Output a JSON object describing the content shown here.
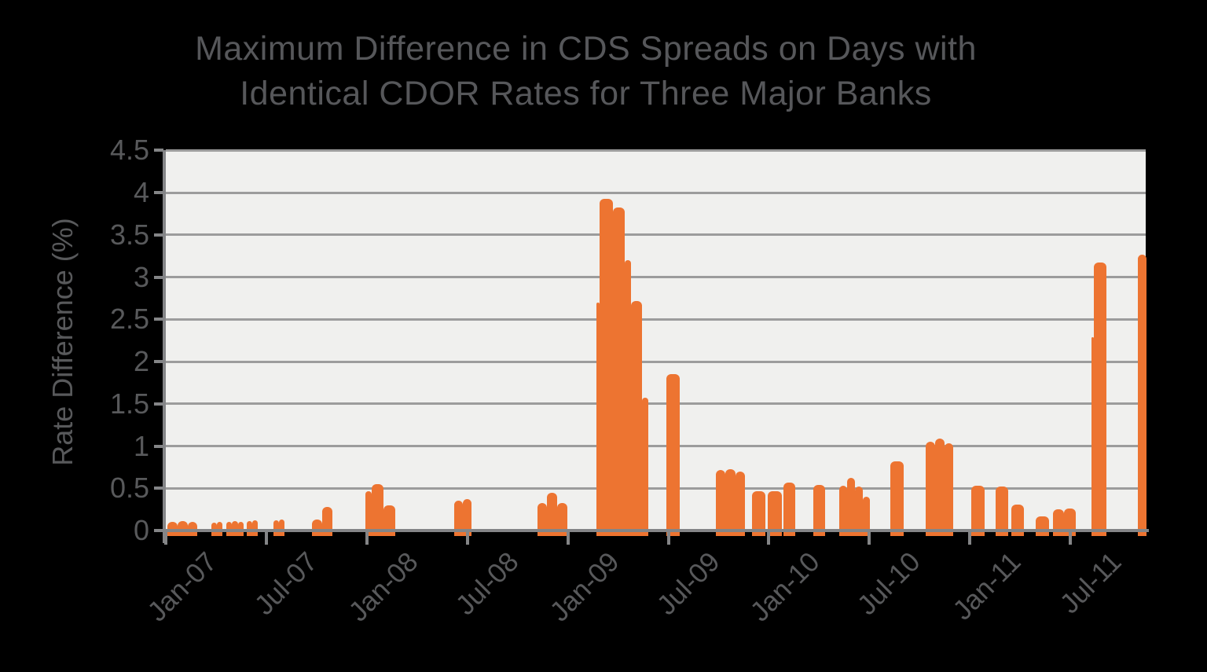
{
  "title": {
    "line1": "Maximum Difference in CDS Spreads on Days with",
    "line2": "Identical CDOR Rates for Three Major Banks"
  },
  "colors": {
    "background": "#000000",
    "bar": "#ED7431",
    "plot_background": "#F0F0EE",
    "gridline": "#9C9C9C",
    "axis": "#848587",
    "text": "#58595B"
  },
  "chart_data": {
    "type": "bar",
    "title": "Maximum Difference in CDS Spreads on Days with Identical CDOR Rates for Three Major Banks",
    "xlabel": "",
    "ylabel": "Rate Difference (%)",
    "ylim": [
      0,
      4.5
    ],
    "ytick_step": 0.5,
    "yticks": [
      "0",
      "0.5",
      "1",
      "1.5",
      "2",
      "2.5",
      "3",
      "3.5",
      "4",
      "4.5"
    ],
    "xticks": [
      "Jan-07",
      "Jul-07",
      "Jan-08",
      "Jul-08",
      "Jan-09",
      "Jul-09",
      "Jan-10",
      "Jul-10",
      "Jan-11",
      "Jul-11"
    ],
    "grid": true,
    "legend": false,
    "x_unit": "months since Jan-2007 (6 months between labeled ticks)",
    "bar_format": [
      "t_months_since_jan_2007",
      "bar_width_px",
      "value_pct"
    ],
    "bars": [
      [
        0.3,
        13,
        0.1
      ],
      [
        0.9,
        13,
        0.11
      ],
      [
        1.5,
        12,
        0.1
      ],
      [
        2.9,
        7,
        0.09
      ],
      [
        3.23,
        7,
        0.1
      ],
      [
        3.79,
        7,
        0.1
      ],
      [
        4.13,
        8,
        0.11
      ],
      [
        4.5,
        7,
        0.1
      ],
      [
        5.0,
        7,
        0.11
      ],
      [
        5.33,
        7,
        0.12
      ],
      [
        6.59,
        7,
        0.12
      ],
      [
        6.92,
        7,
        0.13
      ],
      [
        8.89,
        13,
        0.13
      ],
      [
        9.5,
        13,
        0.28
      ],
      [
        12.07,
        8,
        0.47
      ],
      [
        12.44,
        15,
        0.55
      ],
      [
        13.14,
        15,
        0.3
      ],
      [
        17.35,
        11,
        0.35
      ],
      [
        17.86,
        11,
        0.37
      ],
      [
        22.31,
        12,
        0.33
      ],
      [
        22.87,
        13,
        0.45
      ],
      [
        23.48,
        13,
        0.33
      ],
      [
        25.82,
        4,
        2.7
      ],
      [
        26.01,
        17,
        3.93
      ],
      [
        26.81,
        15,
        3.82
      ],
      [
        27.51,
        8,
        3.2
      ],
      [
        27.88,
        14,
        2.72
      ],
      [
        28.53,
        8,
        1.57
      ],
      [
        29.98,
        17,
        1.85
      ],
      [
        32.93,
        12,
        0.72
      ],
      [
        33.49,
        13,
        0.73
      ],
      [
        34.1,
        12,
        0.7
      ],
      [
        35.08,
        17,
        0.47
      ],
      [
        36.02,
        18,
        0.47
      ],
      [
        36.95,
        15,
        0.57
      ],
      [
        38.73,
        15,
        0.54
      ],
      [
        40.27,
        10,
        0.53
      ],
      [
        40.74,
        10,
        0.62
      ],
      [
        41.21,
        10,
        0.52
      ],
      [
        41.68,
        9,
        0.4
      ],
      [
        43.31,
        17,
        0.82
      ],
      [
        45.42,
        12,
        1.05
      ],
      [
        45.98,
        12,
        1.09
      ],
      [
        46.54,
        11,
        1.03
      ],
      [
        48.13,
        17,
        0.53
      ],
      [
        49.58,
        16,
        0.52
      ],
      [
        50.51,
        16,
        0.31
      ],
      [
        51.96,
        17,
        0.17
      ],
      [
        52.99,
        14,
        0.25
      ],
      [
        53.64,
        15,
        0.26
      ],
      [
        55.28,
        3,
        2.29
      ],
      [
        55.42,
        16,
        3.17
      ],
      [
        58.04,
        11,
        3.27
      ]
    ]
  }
}
